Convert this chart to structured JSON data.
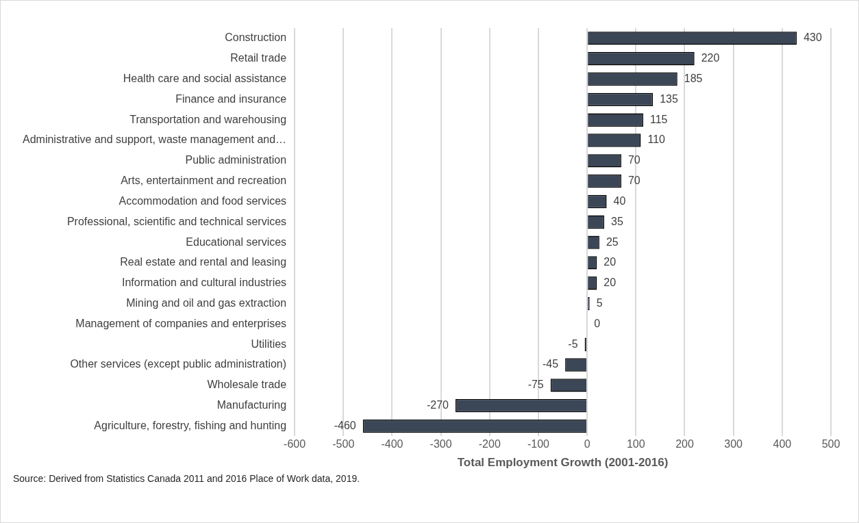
{
  "chart_data": {
    "type": "bar",
    "orientation": "horizontal",
    "xlabel": "Total Employment Growth (2001-2016)",
    "categories": [
      "Construction",
      "Retail trade",
      "Health care and social assistance",
      "Finance and insurance",
      "Transportation and warehousing",
      "Administrative and support, waste management and…",
      "Public administration",
      "Arts, entertainment and recreation",
      "Accommodation and food services",
      "Professional, scientific and technical services",
      "Educational services",
      "Real estate and rental and leasing",
      "Information and cultural industries",
      "Mining and oil and gas extraction",
      "Management of companies and enterprises",
      "Utilities",
      "Other services (except public administration)",
      "Wholesale trade",
      "Manufacturing",
      "Agriculture, forestry, fishing and hunting"
    ],
    "values": [
      430,
      220,
      185,
      135,
      115,
      110,
      70,
      70,
      40,
      35,
      25,
      20,
      20,
      5,
      0,
      -5,
      -45,
      -75,
      -270,
      -460
    ],
    "color": "#3b4656",
    "xlim": [
      -600,
      500
    ],
    "xticks": [
      -600,
      -500,
      -400,
      -300,
      -200,
      -100,
      0,
      100,
      200,
      300,
      400,
      500
    ],
    "grid": "x",
    "legend": false,
    "data_labels": true,
    "annotations": [
      "Source:  Derived from Statistics Canada 2011 and 2016 Place of Work data, 2019."
    ]
  }
}
